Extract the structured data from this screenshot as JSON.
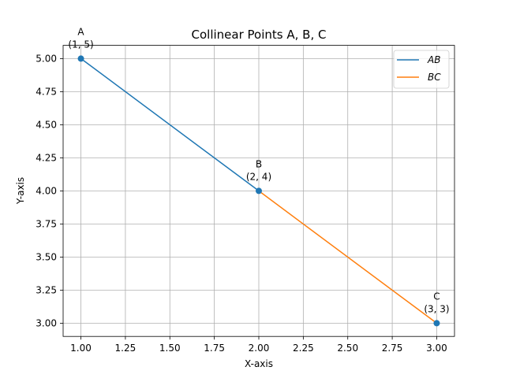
{
  "chart_data": {
    "type": "line",
    "title": "Collinear Points A, B, C",
    "xlabel": "X-axis",
    "ylabel": "Y-axis",
    "xlim": [
      0.9,
      3.1
    ],
    "ylim": [
      2.9,
      5.1
    ],
    "xticks": [
      "1.00",
      "1.25",
      "1.50",
      "1.75",
      "2.00",
      "2.25",
      "2.50",
      "2.75",
      "3.00"
    ],
    "yticks": [
      "3.00",
      "3.25",
      "3.50",
      "3.75",
      "4.00",
      "4.25",
      "4.50",
      "4.75",
      "5.00"
    ],
    "grid": true,
    "legend_position": "top-right",
    "points": [
      {
        "name": "A",
        "coord_label": "(1, 5)",
        "x": 1,
        "y": 5
      },
      {
        "name": "B",
        "coord_label": "(2, 4)",
        "x": 2,
        "y": 4
      },
      {
        "name": "C",
        "coord_label": "(3, 3)",
        "x": 3,
        "y": 3
      }
    ],
    "series": [
      {
        "name": "AB",
        "color": "#1f77b4",
        "x": [
          1,
          2
        ],
        "y": [
          5,
          4
        ]
      },
      {
        "name": "BC",
        "color": "#ff7f0e",
        "x": [
          2,
          3
        ],
        "y": [
          4,
          3
        ]
      }
    ],
    "marker_color": "#1f77b4"
  }
}
